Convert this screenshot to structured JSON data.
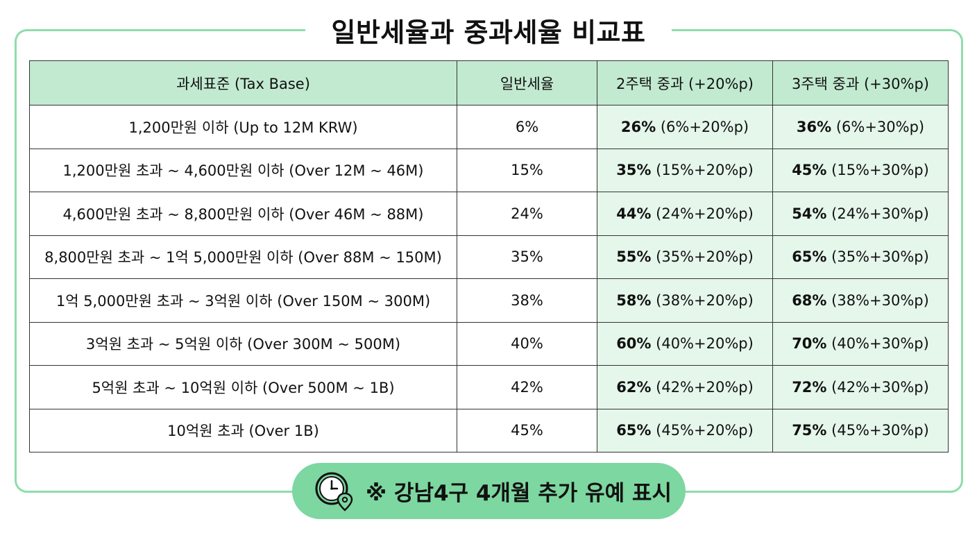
{
  "title": "일반세율과 중과세율 비교표",
  "table": {
    "headers": [
      "과세표준 (Tax Base)",
      "일반세율",
      "2주택 중과 (+20%p)",
      "3주택 중과 (+30%p)"
    ],
    "rows": [
      {
        "base": "1,200만원 이하 (Up to 12M KRW)",
        "general": "6%",
        "two_rate": "26%",
        "two_detail": "(6%+20%p)",
        "three_rate": "36%",
        "three_detail": "(6%+30%p)"
      },
      {
        "base": "1,200만원 초과 ~ 4,600만원 이하 (Over 12M ~ 46M)",
        "general": "15%",
        "two_rate": "35%",
        "two_detail": "(15%+20%p)",
        "three_rate": "45%",
        "three_detail": "(15%+30%p)"
      },
      {
        "base": "4,600만원 초과 ~ 8,800만원 이하 (Over 46M ~ 88M)",
        "general": "24%",
        "two_rate": "44%",
        "two_detail": "(24%+20%p)",
        "three_rate": "54%",
        "three_detail": "(24%+30%p)"
      },
      {
        "base": "8,800만원 초과 ~ 1억 5,000만원 이하 (Over 88M ~ 150M)",
        "general": "35%",
        "two_rate": "55%",
        "two_detail": "(35%+20%p)",
        "three_rate": "65%",
        "three_detail": "(35%+30%p)"
      },
      {
        "base": "1억 5,000만원 초과 ~ 3억원 이하 (Over 150M ~ 300M)",
        "general": "38%",
        "two_rate": "58%",
        "two_detail": "(38%+20%p)",
        "three_rate": "68%",
        "three_detail": "(38%+30%p)"
      },
      {
        "base": "3억원 초과 ~ 5억원 이하 (Over 300M ~ 500M)",
        "general": "40%",
        "two_rate": "60%",
        "two_detail": "(40%+20%p)",
        "three_rate": "70%",
        "three_detail": "(40%+30%p)"
      },
      {
        "base": "5억원 초과 ~ 10억원 이하 (Over 500M ~ 1B)",
        "general": "42%",
        "two_rate": "62%",
        "two_detail": "(42%+20%p)",
        "three_rate": "72%",
        "three_detail": "(42%+30%p)"
      },
      {
        "base": "10억원 초과 (Over 1B)",
        "general": "45%",
        "two_rate": "65%",
        "two_detail": "(45%+20%p)",
        "three_rate": "75%",
        "three_detail": "(45%+30%p)"
      }
    ]
  },
  "note": {
    "icon": "clock-location-icon",
    "text": "※ 강남4구 4개월 추가 유예 표시"
  },
  "colors": {
    "frame_border": "#8fdcab",
    "header_bg": "#c2ead1",
    "heavy_col_bg": "#e5f6eb",
    "pill_bg": "#7dd7a0"
  }
}
